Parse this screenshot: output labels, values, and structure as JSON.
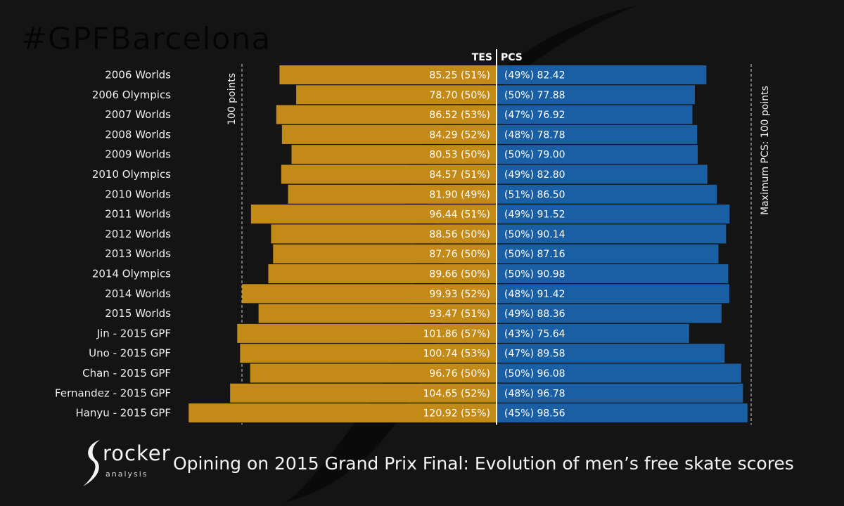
{
  "hashtag": "#GPFBarcelona",
  "caption": "Opining on 2015 Grand Prix Final: Evolution of men’s free skate scores",
  "logo": {
    "word": "rocker",
    "sub": "analysis"
  },
  "colors": {
    "tes": "#c48a18",
    "pcs": "#1a5fa3",
    "background": "#141414",
    "text": "#f0f0f0",
    "guide": "#cfcfcf"
  },
  "chart_data": {
    "type": "bar",
    "title": "",
    "header_left": "TES",
    "header_right": "PCS",
    "guide_left_label": "100 points",
    "guide_right_label": "Maximum PCS: 100 points",
    "xlim": [
      -125,
      125
    ],
    "categories": [
      "2006 Worlds",
      "2006 Olympics",
      "2007 Worlds",
      "2008 Worlds",
      "2009 Worlds",
      "2010 Olympics",
      "2010 Worlds",
      "2011 Worlds",
      "2012 Worlds",
      "2013 Worlds",
      "2014 Olympics",
      "2014 Worlds",
      "2015 Worlds",
      "Jin - 2015 GPF",
      "Uno - 2015 GPF",
      "Chan - 2015 GPF",
      "Fernandez - 2015 GPF",
      "Hanyu - 2015 GPF"
    ],
    "series": [
      {
        "name": "TES",
        "values": [
          85.25,
          78.7,
          86.52,
          84.29,
          80.53,
          84.57,
          81.9,
          96.44,
          88.56,
          87.76,
          89.66,
          99.93,
          93.47,
          101.86,
          100.74,
          96.76,
          104.65,
          120.92
        ],
        "labels": [
          "85.25 (51%)",
          "78.70 (50%)",
          "86.52 (53%)",
          "84.29 (52%)",
          "80.53 (50%)",
          "84.57 (51%)",
          "81.90 (49%)",
          "96.44 (51%)",
          "88.56 (50%)",
          "87.76 (50%)",
          "89.66 (50%)",
          "99.93 (52%)",
          "93.47 (51%)",
          "101.86 (57%)",
          "100.74 (53%)",
          "96.76 (50%)",
          "104.65 (52%)",
          "120.92 (55%)"
        ]
      },
      {
        "name": "PCS",
        "values": [
          82.42,
          77.88,
          76.92,
          78.78,
          79.0,
          82.8,
          86.5,
          91.52,
          90.14,
          87.16,
          90.98,
          91.42,
          88.36,
          75.64,
          89.58,
          96.08,
          96.78,
          98.56
        ],
        "labels": [
          "(49%) 82.42",
          "(50%) 77.88",
          "(47%) 76.92",
          "(48%) 78.78",
          "(50%) 79.00",
          "(49%) 82.80",
          "(51%) 86.50",
          "(49%) 91.52",
          "(50%) 90.14",
          "(50%) 87.16",
          "(50%) 90.98",
          "(48%) 91.42",
          "(49%) 88.36",
          "(43%) 75.64",
          "(47%) 89.58",
          "(50%) 96.08",
          "(48%) 96.78",
          "(45%) 98.56"
        ]
      }
    ],
    "guide_value": 100
  }
}
